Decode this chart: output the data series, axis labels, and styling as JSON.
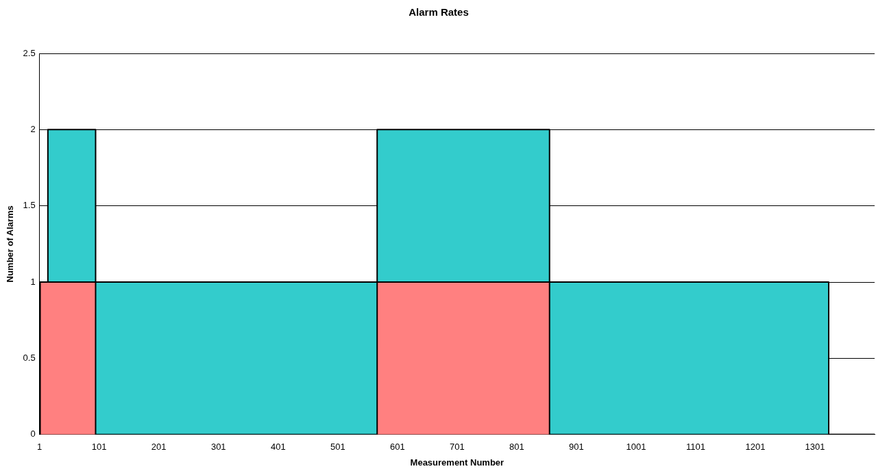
{
  "chart_data": {
    "type": "area",
    "title": "Alarm Rates",
    "xlabel": "Measurement Number",
    "ylabel": "Number of Alarms",
    "stacked": true,
    "x": [
      1,
      2,
      2,
      15,
      15,
      95,
      95,
      567,
      567,
      856,
      856,
      1324,
      1324,
      1401
    ],
    "series": [
      {
        "color": "#ff8080",
        "values": [
          0,
          0,
          1,
          1,
          1,
          1,
          0,
          0,
          1,
          1,
          0,
          0,
          0,
          0
        ]
      },
      {
        "color": "#33cccc",
        "values": [
          0,
          0,
          0,
          0,
          1,
          1,
          1,
          1,
          1,
          1,
          1,
          1,
          0,
          0
        ]
      }
    ],
    "xlim": [
      1,
      1401
    ],
    "xticks": [
      1,
      101,
      201,
      301,
      401,
      501,
      601,
      701,
      801,
      901,
      1001,
      1101,
      1201,
      1301
    ],
    "ylim": [
      0,
      2.5
    ],
    "yticks": [
      0,
      0.5,
      1,
      1.5,
      2,
      2.5
    ],
    "grid": "y",
    "legend": false
  }
}
